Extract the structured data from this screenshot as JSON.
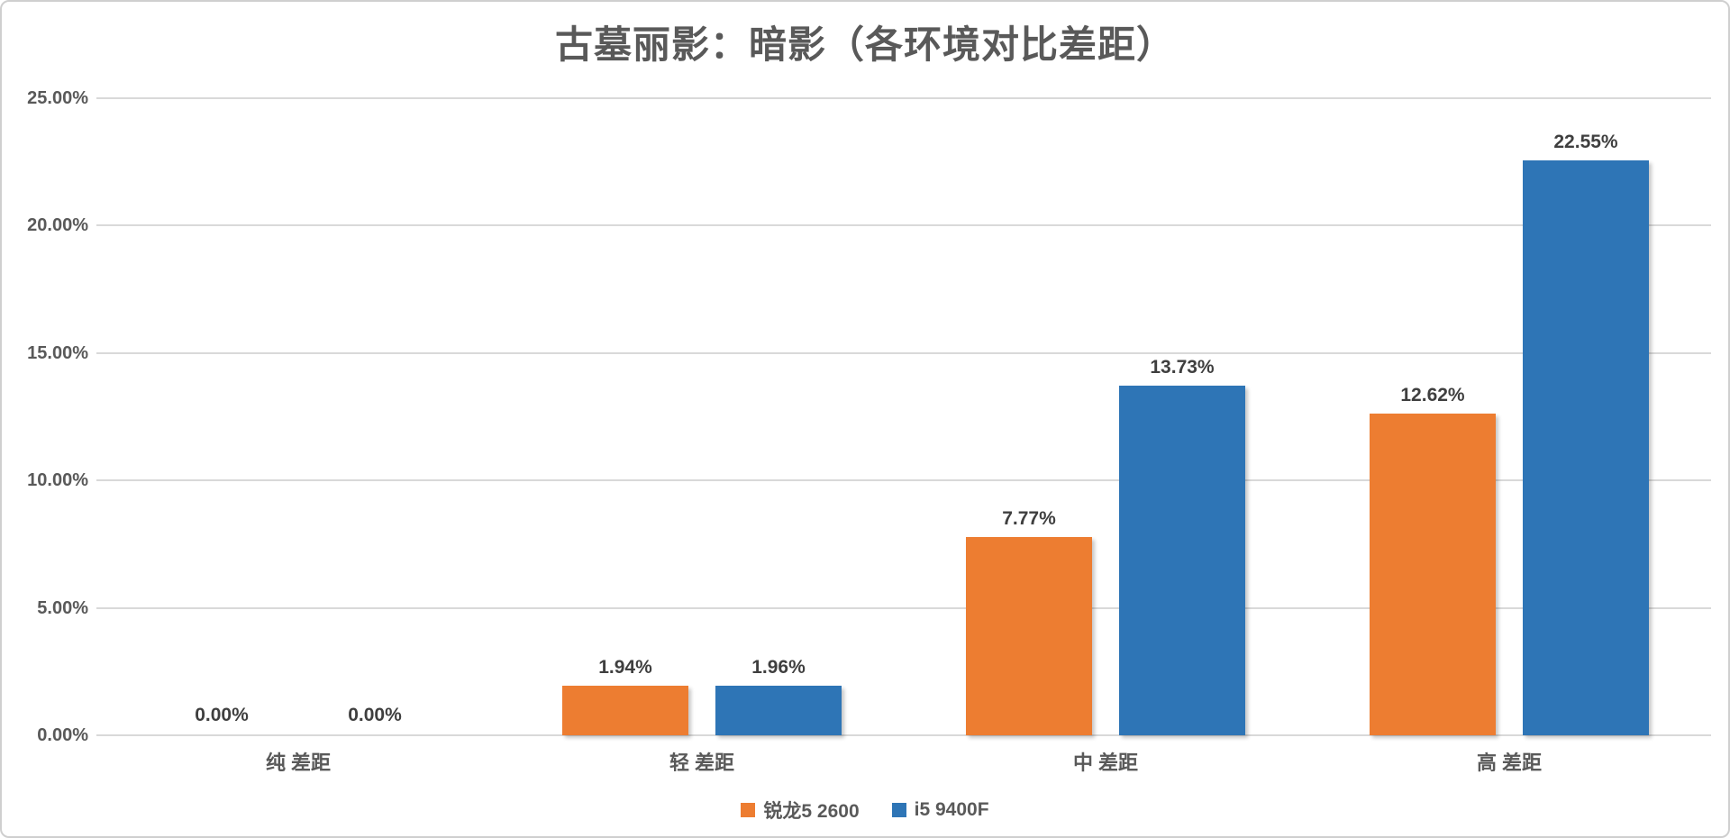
{
  "title": "古墓丽影：暗影（各环境对比差距）",
  "chart_data": {
    "type": "bar",
    "title": "古墓丽影：暗影（各环境对比差距）",
    "categories": [
      "纯 差距",
      "轻 差距",
      "中 差距",
      "高 差距"
    ],
    "series": [
      {
        "name": "锐龙5 2600",
        "color": "#ED7D31",
        "values": [
          0.0,
          1.94,
          7.77,
          12.62
        ],
        "labels": [
          "0.00%",
          "1.94%",
          "7.77%",
          "12.62%"
        ]
      },
      {
        "name": "i5 9400F",
        "color": "#2E75B6",
        "values": [
          0.0,
          1.96,
          13.73,
          22.55
        ],
        "labels": [
          "0.00%",
          "1.96%",
          "13.73%",
          "22.55%"
        ]
      }
    ],
    "y_axis": {
      "tick_labels": [
        "0.00%",
        "5.00%",
        "10.00%",
        "15.00%",
        "20.00%",
        "25.00%"
      ],
      "tick_values": [
        0,
        5,
        10,
        15,
        20,
        25
      ],
      "ylim": [
        0,
        25
      ],
      "grid": true
    },
    "xlabel": "",
    "ylabel": "",
    "legend_position": "bottom",
    "colors": {
      "grid": "#d9d9d9",
      "axis_text": "#595959",
      "data_label": "#3f3f3f",
      "title": "#595959",
      "border": "#cfcfcf",
      "background": "#ffffff"
    }
  }
}
